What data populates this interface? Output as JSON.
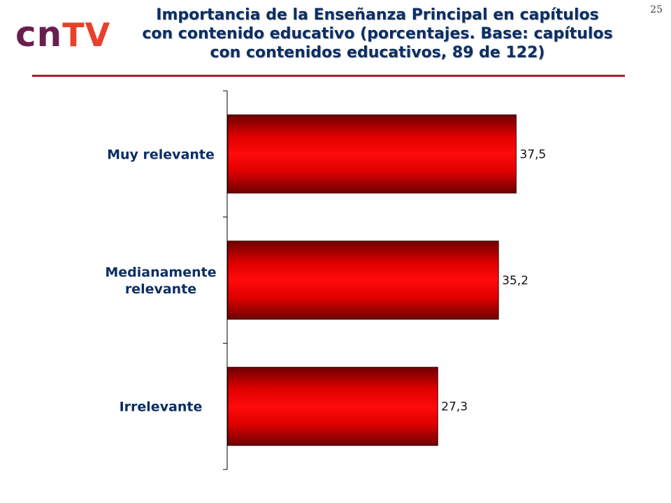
{
  "logo": {
    "cn": "cn",
    "tv": "TV"
  },
  "page_number": "25",
  "colors": {
    "title": "#0b2e66",
    "divider": "#b01a2a",
    "bar_mid": "#ff0000",
    "bar_edge": "#7a0000"
  },
  "chart_data": {
    "type": "bar",
    "orientation": "horizontal",
    "title": "Importancia de la Enseñanza Principal en capítulos con contenido educativo (porcentajes. Base: capítulos con contenidos educativos, 89 de 122)",
    "title_lines": [
      "Importancia de la Enseñanza Principal en capítulos",
      "con contenido educativo (porcentajes. Base: capítulos",
      "con contenidos educativos, 89 de 122)"
    ],
    "categories": [
      [
        "Muy relevante"
      ],
      [
        "Medianamente",
        "relevante"
      ],
      [
        "Irrelevante"
      ]
    ],
    "values": [
      37.5,
      35.2,
      27.3
    ],
    "value_labels": [
      "37,5",
      "35,2",
      "27,3"
    ],
    "xlim": [
      0,
      40
    ],
    "grid": false,
    "legend": "none"
  }
}
